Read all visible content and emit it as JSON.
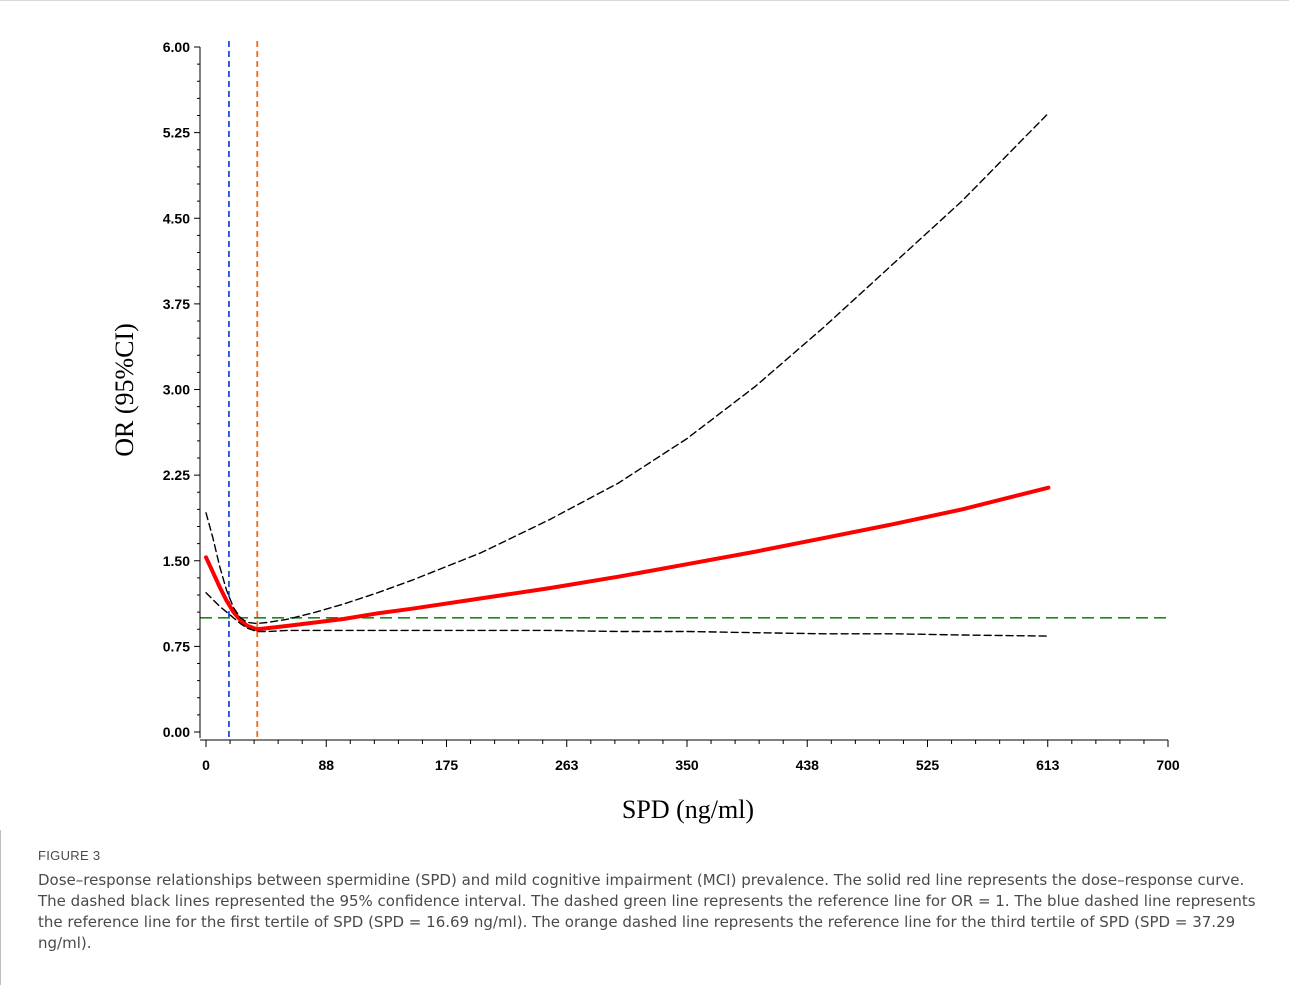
{
  "figure": {
    "label": "FIGURE 3",
    "caption": "Dose–response relationships between spermidine (SPD) and mild cognitive impairment (MCI) prevalence. The solid red line represents the dose–response curve. The dashed black lines represented the 95% confidence interval. The dashed green line represents the reference line for OR = 1. The blue dashed line represents the reference line for the first tertile of SPD (SPD = 16.69 ng/ml). The orange dashed line represents the reference line for the third tertile of SPD (SPD = 37.29 ng/ml)."
  },
  "chart_data": {
    "type": "line",
    "title": "",
    "xlabel": "SPD (ng/ml)",
    "ylabel": "OR (95%CI)",
    "xlim": [
      0,
      700
    ],
    "ylim": [
      0,
      6
    ],
    "x_ticks": [
      "0",
      "88",
      "175",
      "263",
      "350",
      "438",
      "525",
      "613",
      "700"
    ],
    "x_tick_values": [
      0,
      88,
      175,
      263,
      350,
      438,
      525,
      613,
      700
    ],
    "y_ticks": [
      "0.00",
      "0.75",
      "1.50",
      "2.25",
      "3.00",
      "3.75",
      "4.50",
      "5.25",
      "6.00"
    ],
    "y_tick_values": [
      0,
      0.75,
      1.5,
      2.25,
      3.0,
      3.75,
      4.5,
      5.25,
      6.0
    ],
    "grid": false,
    "series": [
      {
        "role": "estimate",
        "style": "solid",
        "color": "#ff0000",
        "x": [
          0,
          5,
          10,
          15,
          20,
          25,
          30,
          37,
          45,
          60,
          80,
          100,
          125,
          150,
          200,
          250,
          300,
          350,
          400,
          450,
          500,
          550,
          613
        ],
        "y": [
          1.53,
          1.4,
          1.27,
          1.15,
          1.05,
          0.98,
          0.93,
          0.9,
          0.91,
          0.93,
          0.96,
          0.99,
          1.04,
          1.08,
          1.17,
          1.26,
          1.36,
          1.47,
          1.58,
          1.7,
          1.82,
          1.95,
          2.14
        ]
      },
      {
        "role": "upper 95% CI",
        "style": "dashed",
        "color": "#000000",
        "x": [
          0,
          5,
          10,
          15,
          20,
          25,
          30,
          37,
          45,
          60,
          80,
          100,
          125,
          150,
          200,
          250,
          300,
          350,
          400,
          450,
          500,
          550,
          613
        ],
        "y": [
          1.92,
          1.7,
          1.45,
          1.24,
          1.09,
          1.0,
          0.96,
          0.95,
          0.96,
          0.99,
          1.05,
          1.12,
          1.22,
          1.33,
          1.57,
          1.86,
          2.18,
          2.57,
          3.03,
          3.55,
          4.1,
          4.65,
          5.42
        ]
      },
      {
        "role": "lower 95% CI",
        "style": "dashed",
        "color": "#000000",
        "x": [
          0,
          5,
          10,
          15,
          20,
          25,
          30,
          37,
          45,
          60,
          80,
          100,
          125,
          150,
          200,
          250,
          300,
          350,
          400,
          450,
          500,
          550,
          613
        ],
        "y": [
          1.22,
          1.16,
          1.1,
          1.05,
          1.0,
          0.95,
          0.91,
          0.88,
          0.88,
          0.89,
          0.89,
          0.89,
          0.89,
          0.89,
          0.89,
          0.89,
          0.88,
          0.88,
          0.87,
          0.86,
          0.86,
          0.85,
          0.84
        ]
      }
    ],
    "reference_lines": [
      {
        "orientation": "horizontal",
        "y": 1,
        "color": "#1a8a1a",
        "style": "dashed"
      },
      {
        "orientation": "vertical",
        "x": 16.69,
        "color": "#1f4fd1",
        "style": "dashed"
      },
      {
        "orientation": "vertical",
        "x": 37.29,
        "color": "#f26b1d",
        "style": "dashed"
      }
    ]
  }
}
